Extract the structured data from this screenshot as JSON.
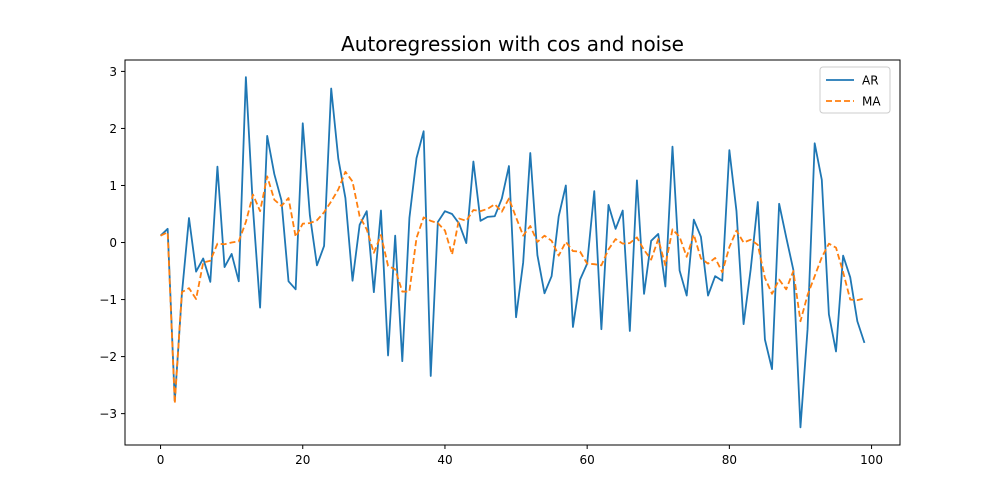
{
  "chart_data": {
    "type": "line",
    "title": "Autoregression with cos and noise",
    "xlabel": "",
    "ylabel": "",
    "xlim": [
      -5,
      104
    ],
    "ylim": [
      -3.55,
      3.2
    ],
    "xticks": [
      0,
      20,
      40,
      60,
      80,
      100
    ],
    "yticks": [
      -3,
      -2,
      -1,
      0,
      1,
      2,
      3
    ],
    "xtick_labels": [
      "0",
      "20",
      "40",
      "60",
      "80",
      "100"
    ],
    "ytick_labels": [
      "−3",
      "−2",
      "−1",
      "0",
      "1",
      "2",
      "3"
    ],
    "grid": false,
    "legend_position": "top-right",
    "x": [
      0,
      1,
      2,
      3,
      4,
      5,
      6,
      7,
      8,
      9,
      10,
      11,
      12,
      13,
      14,
      15,
      16,
      17,
      18,
      19,
      20,
      21,
      22,
      23,
      24,
      25,
      26,
      27,
      28,
      29,
      30,
      31,
      32,
      33,
      34,
      35,
      36,
      37,
      38,
      39,
      40,
      41,
      42,
      43,
      44,
      45,
      46,
      47,
      48,
      49,
      50,
      51,
      52,
      53,
      54,
      55,
      56,
      57,
      58,
      59,
      60,
      61,
      62,
      63,
      64,
      65,
      66,
      67,
      68,
      69,
      70,
      71,
      72,
      73,
      74,
      75,
      76,
      77,
      78,
      79,
      80,
      81,
      82,
      83,
      84,
      85,
      86,
      87,
      88,
      89,
      90,
      91,
      92,
      93,
      94,
      95,
      96,
      97,
      98,
      99
    ],
    "series": [
      {
        "name": "AR",
        "color": "#1f77b4",
        "style": "solid",
        "values": [
          0.12,
          0.24,
          -2.78,
          -0.9,
          0.43,
          -0.51,
          -0.28,
          -0.69,
          1.33,
          -0.43,
          -0.2,
          -0.68,
          2.9,
          0.6,
          -1.14,
          1.87,
          1.2,
          0.74,
          -0.68,
          -0.82,
          2.09,
          0.48,
          -0.4,
          -0.06,
          2.7,
          1.47,
          0.78,
          -0.67,
          0.31,
          0.55,
          -0.87,
          0.56,
          -1.98,
          0.12,
          -2.08,
          0.43,
          1.48,
          1.95,
          -2.34,
          0.36,
          0.55,
          0.5,
          0.33,
          -0.01,
          1.42,
          0.38,
          0.45,
          0.46,
          0.77,
          1.34,
          -1.31,
          -0.35,
          1.57,
          -0.22,
          -0.89,
          -0.59,
          0.46,
          1.0,
          -1.48,
          -0.65,
          -0.37,
          0.9,
          -1.52,
          0.66,
          0.24,
          0.56,
          -1.55,
          1.09,
          -0.9,
          0.03,
          0.15,
          -0.77,
          1.68,
          -0.49,
          -0.93,
          0.4,
          0.1,
          -0.93,
          -0.59,
          -0.67,
          1.62,
          0.55,
          -1.43,
          -0.47,
          0.71,
          -1.7,
          -2.22,
          0.68,
          0.09,
          -0.48,
          -3.24,
          -1.52,
          1.74,
          1.1,
          -1.26,
          -1.91,
          -0.23,
          -0.61,
          -1.38,
          -1.76
        ]
      },
      {
        "name": "MA",
        "color": "#ff7f0e",
        "style": "dashed",
        "values": [
          0.12,
          0.18,
          -2.82,
          -0.87,
          -0.8,
          -0.99,
          -0.35,
          -0.32,
          -0.02,
          -0.03,
          0.0,
          0.02,
          0.36,
          0.84,
          0.55,
          1.16,
          0.75,
          0.64,
          0.78,
          0.1,
          0.33,
          0.34,
          0.39,
          0.53,
          0.72,
          0.93,
          1.24,
          1.07,
          0.46,
          0.23,
          -0.18,
          0.13,
          -0.41,
          -0.47,
          -0.86,
          -0.86,
          0.08,
          0.44,
          0.38,
          0.34,
          0.21,
          -0.21,
          0.42,
          0.38,
          0.57,
          0.55,
          0.59,
          0.67,
          0.54,
          0.77,
          0.44,
          0.12,
          0.29,
          0.01,
          0.12,
          0.03,
          -0.23,
          0.01,
          -0.15,
          -0.16,
          -0.37,
          -0.38,
          -0.4,
          -0.12,
          0.06,
          -0.02,
          -0.01,
          0.09,
          -0.13,
          -0.3,
          0.06,
          -0.4,
          0.23,
          0.1,
          -0.25,
          0.14,
          -0.28,
          -0.37,
          -0.27,
          -0.52,
          -0.08,
          0.21,
          0.0,
          0.05,
          -0.04,
          -0.62,
          -0.9,
          -0.65,
          -0.82,
          -0.5,
          -1.38,
          -0.92,
          -0.59,
          -0.26,
          -0.02,
          -0.09,
          -0.52,
          -1.0,
          -1.01,
          -0.98
        ]
      }
    ]
  }
}
